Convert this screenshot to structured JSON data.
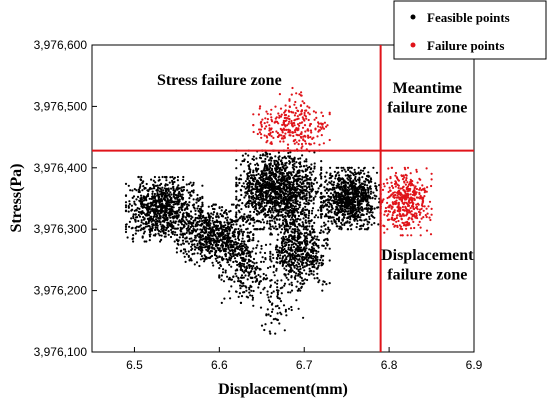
{
  "chart_data": {
    "type": "scatter",
    "xlabel": "Displacement(mm)",
    "ylabel": "Stress(Pa)",
    "xlim": [
      6.45,
      6.9
    ],
    "ylim": [
      3976100,
      3976600
    ],
    "xticks": [
      {
        "value": 6.5,
        "label": "6.5"
      },
      {
        "value": 6.6,
        "label": "6.6"
      },
      {
        "value": 6.7,
        "label": "6.7"
      },
      {
        "value": 6.8,
        "label": "6.8"
      },
      {
        "value": 6.9,
        "label": "6.9"
      }
    ],
    "yticks": [
      {
        "value": 3976100,
        "label": "3,976,100"
      },
      {
        "value": 3976200,
        "label": "3,976,200"
      },
      {
        "value": 3976300,
        "label": "3,976,300"
      },
      {
        "value": 3976400,
        "label": "3,976,400"
      },
      {
        "value": 3976500,
        "label": "3,976,500"
      },
      {
        "value": 3976600,
        "label": "3,976,600"
      }
    ],
    "thresholds": {
      "displacement_limit": 6.79,
      "stress_limit": 3976428
    },
    "threshold_color": "#e0141a",
    "legend_position": "top-right",
    "series": [
      {
        "name": "Feasible points",
        "color": "#000000",
        "clusters": [
          {
            "x": [
              6.49,
              6.58
            ],
            "y": [
              3976280,
              3976385
            ],
            "count": 900
          },
          {
            "x": [
              6.55,
              6.64
            ],
            "y": [
              3976240,
              3976340
            ],
            "count": 700
          },
          {
            "x": [
              6.6,
              6.66
            ],
            "y": [
              3976180,
              3976300
            ],
            "count": 260
          },
          {
            "x": [
              6.62,
              6.72
            ],
            "y": [
              3976300,
              3976428
            ],
            "count": 1400
          },
          {
            "x": [
              6.66,
              6.73
            ],
            "y": [
              3976200,
              3976330
            ],
            "count": 600
          },
          {
            "x": [
              6.72,
              6.79
            ],
            "y": [
              3976300,
              3976400
            ],
            "count": 900
          },
          {
            "x": [
              6.64,
              6.7
            ],
            "y": [
              3976130,
              3976230
            ],
            "count": 70
          }
        ]
      },
      {
        "name": "Failure points",
        "color": "#e0141a",
        "clusters": [
          {
            "x": [
              6.64,
              6.73
            ],
            "y": [
              3976428,
              3976500
            ],
            "count": 260
          },
          {
            "x": [
              6.67,
              6.71
            ],
            "y": [
              3976480,
              3976530
            ],
            "count": 30
          },
          {
            "x": [
              6.79,
              6.85
            ],
            "y": [
              3976290,
              3976400
            ],
            "count": 420
          }
        ]
      }
    ],
    "zones": [
      {
        "text": "Stress failure zone",
        "x": 6.6,
        "y": 3976535
      },
      {
        "text": "Meantime",
        "x": 6.845,
        "y": 3976522
      },
      {
        "text": "failure zone",
        "x": 6.845,
        "y": 3976490
      },
      {
        "text": "Displacement",
        "x": 6.845,
        "y": 3976250
      },
      {
        "text": "failure zone",
        "x": 6.845,
        "y": 3976218
      }
    ]
  }
}
